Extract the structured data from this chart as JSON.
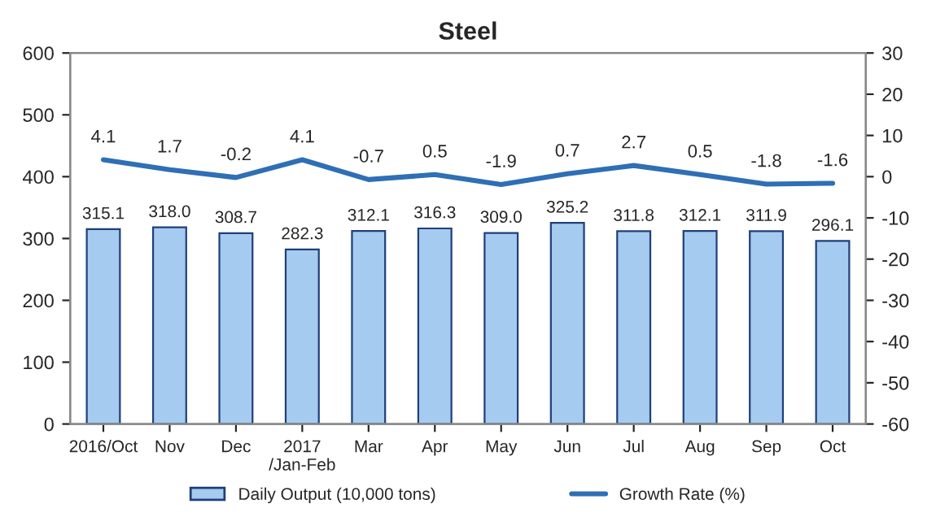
{
  "chart_data": {
    "type": "bar",
    "title": "Steel",
    "categories": [
      "2016/Oct",
      "Nov",
      "Dec",
      "2017\n/Jan-Feb",
      "Mar",
      "Apr",
      "May",
      "Jun",
      "Jul",
      "Aug",
      "Sep",
      "Oct"
    ],
    "series": [
      {
        "name": "Daily Output (10,000 tons)",
        "color": "#a6cbf0",
        "values": [
          315.1,
          318.0,
          308.7,
          282.3,
          312.1,
          316.3,
          309.0,
          325.2,
          311.8,
          312.1,
          311.9,
          296.1
        ],
        "value_labels": [
          "315.1",
          "318.0",
          "308.7",
          "282.3",
          "312.1",
          "316.3",
          "309.0",
          "325.2",
          "311.8",
          "312.1",
          "311.9",
          "296.1"
        ]
      },
      {
        "name": "Growth Rate (%)",
        "type": "line",
        "axis": "y2",
        "color": "#2e6fb5",
        "values": [
          4.1,
          1.7,
          -0.2,
          4.1,
          -0.7,
          0.5,
          -1.9,
          0.7,
          2.7,
          0.5,
          -1.8,
          -1.6
        ],
        "value_labels": [
          "4.1",
          "1.7",
          "-0.2",
          "4.1",
          "-0.7",
          "0.5",
          "-1.9",
          "0.7",
          "2.7",
          "0.5",
          "-1.8",
          "-1.6"
        ]
      }
    ],
    "ylim": [
      0,
      600
    ],
    "yticks": [
      0,
      100,
      200,
      300,
      400,
      500,
      600
    ],
    "y2lim": [
      -60,
      30
    ],
    "y2ticks": [
      -60,
      -50,
      -40,
      -30,
      -20,
      -10,
      0,
      10,
      20,
      30
    ],
    "legend": "bottom",
    "grid": false
  }
}
